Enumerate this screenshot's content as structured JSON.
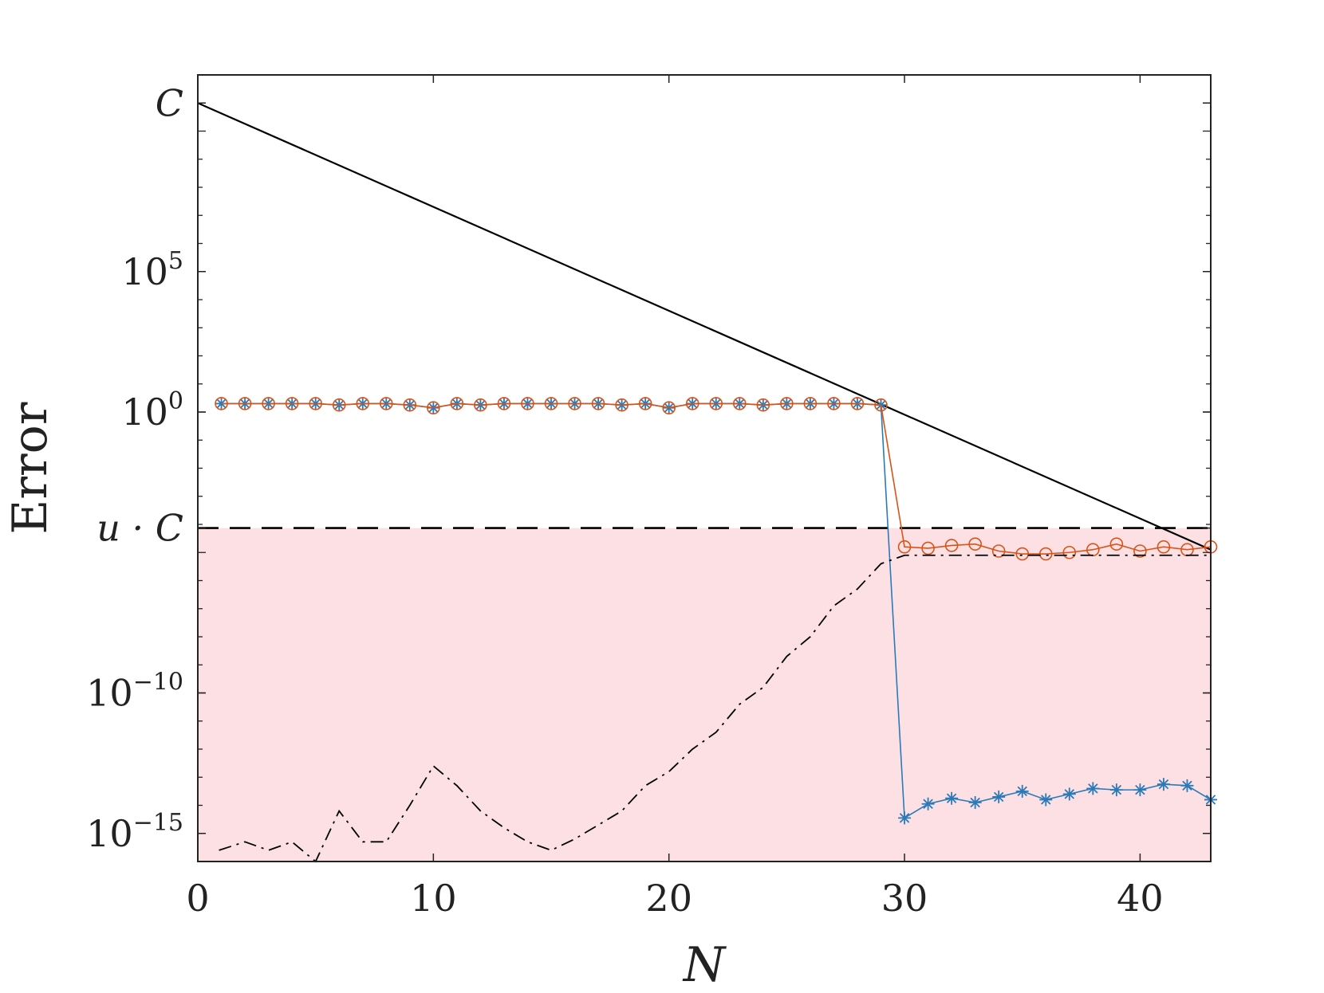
{
  "chart_data": {
    "type": "line",
    "xlabel": "N",
    "ylabel": "Error",
    "xlim": [
      0,
      43
    ],
    "ylim_log10": [
      -16,
      12
    ],
    "log_scale_y": true,
    "grid": false,
    "x_ticks": [
      {
        "value": 0,
        "label": "0"
      },
      {
        "value": 10,
        "label": "10"
      },
      {
        "value": 20,
        "label": "20"
      },
      {
        "value": 30,
        "label": "30"
      },
      {
        "value": 40,
        "label": "40"
      }
    ],
    "y_ticks": [
      {
        "log10": 11,
        "base": "C",
        "exp": ""
      },
      {
        "log10": 5,
        "base": "10",
        "exp": "5"
      },
      {
        "log10": 0,
        "base": "10",
        "exp": "0"
      },
      {
        "log10": -4.13,
        "base": "u · C",
        "exp": ""
      },
      {
        "log10": -10,
        "base": "10",
        "exp": "−10"
      },
      {
        "log10": -15,
        "base": "10",
        "exp": "−15"
      }
    ],
    "shaded_region": {
      "from_log10": -16,
      "to_log10": -4.13,
      "color": "#fde0e3"
    },
    "reference_lines": [
      {
        "style": "solid",
        "color": "#000000",
        "x": [
          0,
          43
        ],
        "log10_y": [
          11,
          -4.9
        ]
      },
      {
        "style": "dashed",
        "color": "#000000",
        "x": [
          0,
          43
        ],
        "log10_y": [
          -4.13,
          -4.13
        ]
      }
    ],
    "series": [
      {
        "marker": "star",
        "color": "#2a7ab9",
        "x": [
          1,
          2,
          3,
          4,
          5,
          6,
          7,
          8,
          9,
          10,
          11,
          12,
          13,
          14,
          15,
          16,
          17,
          18,
          19,
          20,
          21,
          22,
          23,
          24,
          25,
          26,
          27,
          28,
          29,
          30,
          31,
          32,
          33,
          34,
          35,
          36,
          37,
          38,
          39,
          40,
          41,
          42,
          43
        ],
        "log10_y": [
          0.3,
          0.3,
          0.3,
          0.3,
          0.3,
          0.25,
          0.3,
          0.3,
          0.25,
          0.15,
          0.3,
          0.25,
          0.3,
          0.3,
          0.3,
          0.3,
          0.3,
          0.25,
          0.3,
          0.15,
          0.3,
          0.3,
          0.3,
          0.25,
          0.3,
          0.3,
          0.3,
          0.3,
          0.25,
          -14.45,
          -13.95,
          -13.75,
          -13.9,
          -13.7,
          -13.5,
          -13.8,
          -13.6,
          -13.4,
          -13.45,
          -13.45,
          -13.25,
          -13.3,
          -13.8
        ]
      },
      {
        "marker": "circle",
        "color": "#d95319",
        "x": [
          1,
          2,
          3,
          4,
          5,
          6,
          7,
          8,
          9,
          10,
          11,
          12,
          13,
          14,
          15,
          16,
          17,
          18,
          19,
          20,
          21,
          22,
          23,
          24,
          25,
          26,
          27,
          28,
          29,
          30,
          31,
          32,
          33,
          34,
          35,
          36,
          37,
          38,
          39,
          40,
          41,
          42,
          43
        ],
        "log10_y": [
          0.3,
          0.3,
          0.3,
          0.3,
          0.3,
          0.25,
          0.3,
          0.3,
          0.25,
          0.15,
          0.3,
          0.25,
          0.3,
          0.3,
          0.3,
          0.3,
          0.3,
          0.25,
          0.3,
          0.15,
          0.3,
          0.3,
          0.3,
          0.25,
          0.3,
          0.3,
          0.3,
          0.3,
          0.25,
          -4.8,
          -4.85,
          -4.75,
          -4.7,
          -4.95,
          -5.05,
          -5.05,
          -5.0,
          -4.9,
          -4.7,
          -4.95,
          -4.8,
          -4.9,
          -4.8
        ]
      },
      {
        "style": "dashdot",
        "color": "#000000",
        "x": [
          0.9,
          2,
          3,
          4,
          5,
          6,
          7,
          8,
          9,
          10,
          11,
          12,
          13,
          14,
          15,
          16,
          17,
          18,
          19,
          20,
          21,
          22,
          23,
          24,
          25,
          26,
          27,
          28,
          29,
          30,
          31,
          32,
          33,
          34,
          35,
          36,
          37,
          38,
          39,
          40,
          41,
          42,
          43
        ],
        "log10_y": [
          -15.6,
          -15.3,
          -15.6,
          -15.3,
          -16.0,
          -14.2,
          -15.3,
          -15.3,
          -14.0,
          -12.6,
          -13.3,
          -14.2,
          -14.8,
          -15.3,
          -15.6,
          -15.2,
          -14.7,
          -14.2,
          -13.3,
          -12.8,
          -12.0,
          -11.4,
          -10.4,
          -9.8,
          -8.7,
          -8.0,
          -6.9,
          -6.3,
          -5.4,
          -5.1,
          -5.1,
          -5.1,
          -5.1,
          -5.1,
          -5.1,
          -5.1,
          -5.1,
          -5.1,
          -5.1,
          -5.1,
          -5.1,
          -5.1,
          -5.1
        ]
      }
    ]
  }
}
